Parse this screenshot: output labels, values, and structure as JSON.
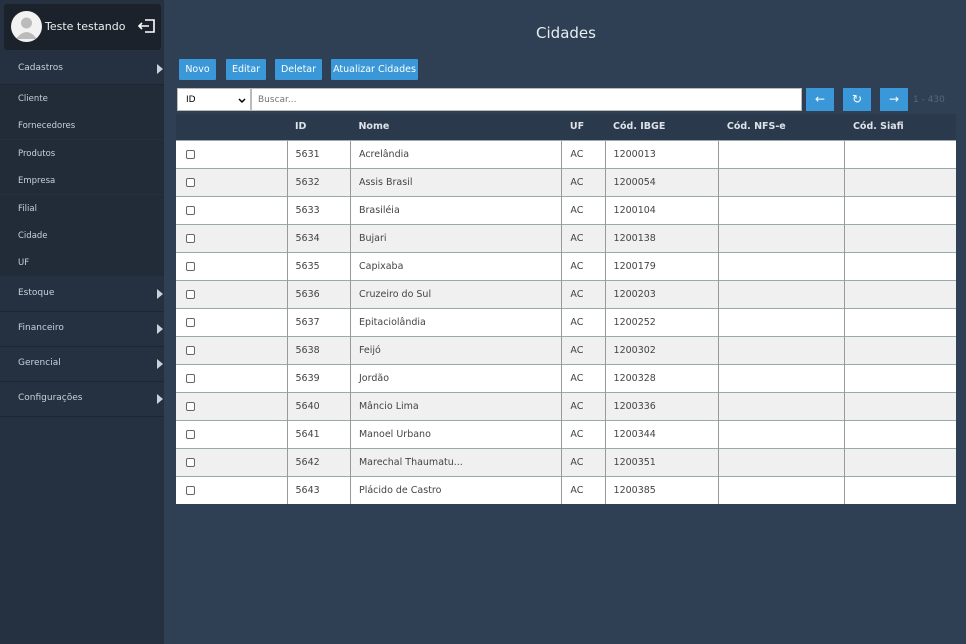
{
  "user": {
    "name": "Teste testando"
  },
  "menu": [
    {
      "label": "Cadastros",
      "items": [
        "Cliente",
        "Fornecedores",
        "Produtos",
        "Empresa",
        "Filial",
        "Cidade",
        "UF"
      ]
    },
    {
      "label": "Estoque"
    },
    {
      "label": "Financeiro"
    },
    {
      "label": "Gerencial"
    },
    {
      "label": "Configurações"
    }
  ],
  "page": {
    "title": "Cidades"
  },
  "toolbar": {
    "buttons": [
      "Novo",
      "Editar",
      "Deletar",
      "Atualizar Cidades"
    ]
  },
  "search": {
    "field": "ID",
    "placeholder": "Buscar...",
    "range": "1 - 430"
  },
  "table": {
    "headers": [
      "ID",
      "Nome",
      "UF",
      "Cód. IBGE",
      "Cód. NFS-e",
      "Cód. Siafi"
    ],
    "rows": [
      [
        5631,
        "Acrelândia",
        "AC",
        1200013
      ],
      [
        5632,
        "Assis Brasil",
        "AC",
        1200054
      ],
      [
        5633,
        "Brasiléia",
        "AC",
        1200104
      ],
      [
        5634,
        "Bujari",
        "AC",
        1200138
      ],
      [
        5635,
        "Capixaba",
        "AC",
        1200179
      ],
      [
        5636,
        "Cruzeiro do Sul",
        "AC",
        1200203
      ],
      [
        5637,
        "Epitaciolândia",
        "AC",
        1200252
      ],
      [
        5638,
        "Feijó",
        "AC",
        1200302
      ],
      [
        5639,
        "Jordão",
        "AC",
        1200328
      ],
      [
        5640,
        "Mâncio Lima",
        "AC",
        1200336
      ],
      [
        5641,
        "Manoel Urbano",
        "AC",
        1200344
      ],
      [
        5642,
        "Marechal Thaumatu...",
        "AC",
        1200351
      ],
      [
        5643,
        "Plácido de Castro",
        "AC",
        1200385
      ]
    ]
  }
}
